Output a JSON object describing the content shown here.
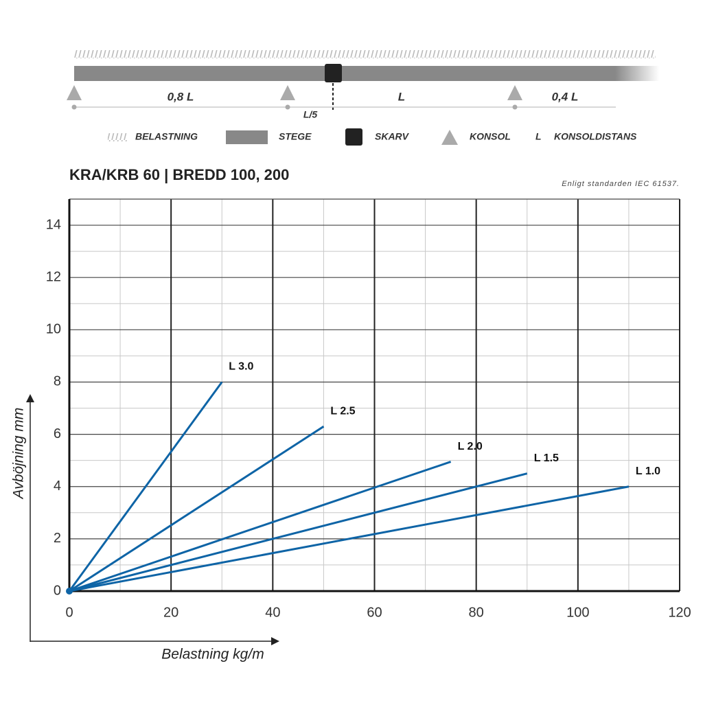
{
  "diagram": {
    "labels": [
      "0,8 L",
      "L/5",
      "L",
      "0,4 L"
    ],
    "legend": [
      "BELASTNING",
      "STEGE",
      "SKARV",
      "KONSOL",
      "L",
      "KONSOLDISTANS"
    ]
  },
  "chart_data": {
    "type": "line",
    "title": "KRA/KRB 60 | BREDD 100, 200",
    "subtitle": "Enligt standarden IEC 61537.",
    "x_label": "Belastning kg/m",
    "y_label": "Avböjning mm",
    "xlim": [
      0,
      120
    ],
    "xticks": [
      0,
      20,
      40,
      60,
      80,
      100,
      120
    ],
    "ylim": [
      0,
      15
    ],
    "yticks": [
      0,
      2,
      4,
      6,
      8,
      10,
      12,
      14
    ],
    "grid": true,
    "series": [
      {
        "name": "L 3.0",
        "color": "#0e64a6",
        "x": [
          0,
          30
        ],
        "values": [
          0,
          8
        ]
      },
      {
        "name": "L 2.5",
        "color": "#0e64a6",
        "x": [
          0,
          50
        ],
        "values": [
          0,
          6.3
        ]
      },
      {
        "name": "L 2.0",
        "color": "#0e64a6",
        "x": [
          0,
          75
        ],
        "values": [
          0,
          4.95
        ]
      },
      {
        "name": "L 1.5",
        "color": "#0e64a6",
        "x": [
          0,
          90
        ],
        "values": [
          0,
          4.5
        ]
      },
      {
        "name": "L 1.0",
        "color": "#0e64a6",
        "x": [
          0,
          110
        ],
        "values": [
          0,
          4
        ]
      }
    ]
  }
}
